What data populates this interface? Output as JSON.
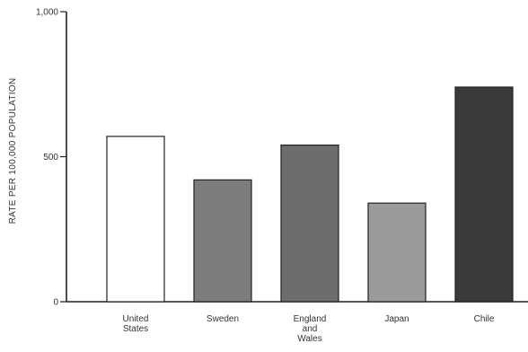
{
  "chart_data": {
    "type": "bar",
    "title": "",
    "xlabel": "",
    "ylabel": "RATE PER 100,000 POPULATION",
    "ylim": [
      0,
      1000
    ],
    "yticks": [
      {
        "value": 0,
        "label": "0"
      },
      {
        "value": 500,
        "label": "500"
      },
      {
        "value": 1000,
        "label": "1,000"
      }
    ],
    "grid": false,
    "categories": [
      {
        "label_lines": [
          "United",
          "States"
        ]
      },
      {
        "label_lines": [
          "Sweden"
        ]
      },
      {
        "label_lines": [
          "England",
          "and",
          "Wales"
        ]
      },
      {
        "label_lines": [
          "Japan"
        ]
      },
      {
        "label_lines": [
          "Chile"
        ]
      }
    ],
    "values": [
      570,
      420,
      540,
      340,
      740
    ],
    "colors": [
      "#ffffff",
      "#7d7d7d",
      "#6d6d6d",
      "#9a9a9a",
      "#3a3a3a"
    ]
  }
}
